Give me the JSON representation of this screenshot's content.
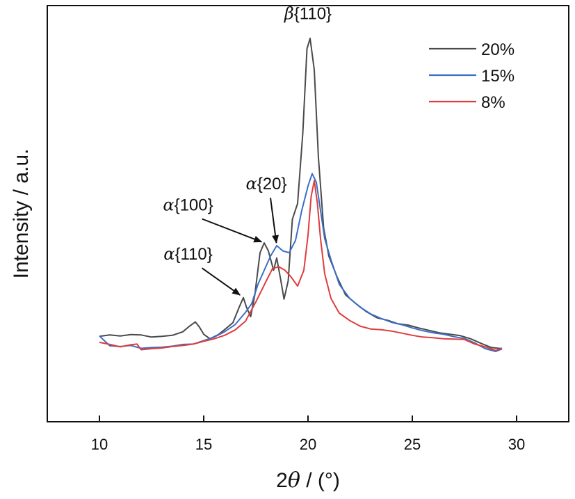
{
  "chart_data": {
    "type": "line",
    "title": "",
    "xlabel": "2θ / (°)",
    "xlabel_parts": {
      "prefix": "2",
      "symbol": "θ",
      "suffix": " / (°)"
    },
    "ylabel": "Intensity / a.u.",
    "xlim": [
      7.5,
      32.5
    ],
    "ylim": [
      0,
      100
    ],
    "y_tick_labels_shown": false,
    "x_ticks": [
      10,
      15,
      20,
      25,
      30
    ],
    "x_tick_labels": [
      "10",
      "15",
      "20",
      "25",
      "30"
    ],
    "grid": false,
    "legend_position": "top-right",
    "series": [
      {
        "name": "20%",
        "color": "#4a4a4a",
        "points": [
          [
            10.0,
            14.2
          ],
          [
            10.5,
            14.6
          ],
          [
            11.0,
            14.3
          ],
          [
            11.5,
            14.7
          ],
          [
            12.0,
            14.6
          ],
          [
            12.5,
            14.0
          ],
          [
            13.0,
            14.2
          ],
          [
            13.5,
            14.5
          ],
          [
            14.0,
            15.5
          ],
          [
            14.3,
            17.0
          ],
          [
            14.6,
            18.3
          ],
          [
            14.8,
            16.8
          ],
          [
            15.0,
            14.8
          ],
          [
            15.3,
            13.5
          ],
          [
            15.7,
            14.7
          ],
          [
            16.0,
            16.1
          ],
          [
            16.4,
            18.1
          ],
          [
            16.7,
            22.5
          ],
          [
            16.9,
            25.2
          ],
          [
            17.05,
            22.5
          ],
          [
            17.25,
            19.8
          ],
          [
            17.45,
            26.0
          ],
          [
            17.7,
            38.0
          ],
          [
            17.9,
            40.8
          ],
          [
            18.1,
            38.5
          ],
          [
            18.35,
            33.0
          ],
          [
            18.5,
            36.5
          ],
          [
            18.7,
            30.0
          ],
          [
            18.85,
            24.8
          ],
          [
            19.05,
            30.0
          ],
          [
            19.25,
            47.5
          ],
          [
            19.5,
            52.0
          ],
          [
            19.75,
            72.0
          ],
          [
            19.95,
            96.0
          ],
          [
            20.1,
            99.0
          ],
          [
            20.3,
            90.0
          ],
          [
            20.5,
            65.0
          ],
          [
            20.75,
            45.0
          ],
          [
            21.0,
            37.0
          ],
          [
            21.4,
            31.0
          ],
          [
            21.8,
            26.0
          ],
          [
            22.3,
            23.5
          ],
          [
            22.8,
            21.2
          ],
          [
            23.3,
            19.5
          ],
          [
            23.8,
            18.8
          ],
          [
            24.3,
            17.8
          ],
          [
            24.8,
            17.4
          ],
          [
            25.3,
            16.6
          ],
          [
            25.8,
            15.9
          ],
          [
            26.3,
            15.2
          ],
          [
            26.8,
            14.8
          ],
          [
            27.3,
            14.4
          ],
          [
            27.8,
            13.5
          ],
          [
            28.3,
            12.2
          ],
          [
            28.8,
            11.0
          ],
          [
            29.3,
            10.7
          ]
        ]
      },
      {
        "name": "15%",
        "color": "#3a6fc7",
        "points": [
          [
            10.0,
            14.3
          ],
          [
            10.5,
            11.5
          ],
          [
            11.0,
            11.3
          ],
          [
            11.5,
            11.6
          ],
          [
            12.0,
            10.8
          ],
          [
            12.5,
            11.0
          ],
          [
            13.0,
            11.1
          ],
          [
            13.5,
            11.4
          ],
          [
            14.0,
            11.9
          ],
          [
            14.5,
            12.0
          ],
          [
            15.0,
            13.0
          ],
          [
            15.5,
            14.0
          ],
          [
            16.0,
            15.5
          ],
          [
            16.5,
            17.5
          ],
          [
            17.0,
            21.0
          ],
          [
            17.3,
            23.5
          ],
          [
            17.6,
            29.0
          ],
          [
            17.9,
            33.0
          ],
          [
            18.2,
            37.0
          ],
          [
            18.5,
            40.0
          ],
          [
            18.8,
            38.5
          ],
          [
            19.1,
            38.0
          ],
          [
            19.4,
            41.5
          ],
          [
            19.7,
            50.0
          ],
          [
            20.0,
            57.0
          ],
          [
            20.2,
            60.5
          ],
          [
            20.4,
            58.0
          ],
          [
            20.6,
            50.0
          ],
          [
            20.8,
            42.0
          ],
          [
            21.1,
            36.0
          ],
          [
            21.5,
            29.0
          ],
          [
            22.0,
            25.0
          ],
          [
            22.5,
            22.5
          ],
          [
            23.0,
            20.6
          ],
          [
            23.5,
            19.3
          ],
          [
            24.0,
            18.2
          ],
          [
            24.5,
            17.5
          ],
          [
            25.0,
            16.6
          ],
          [
            25.5,
            15.8
          ],
          [
            26.0,
            15.2
          ],
          [
            26.5,
            14.8
          ],
          [
            27.0,
            14.1
          ],
          [
            27.5,
            13.6
          ],
          [
            28.0,
            12.3
          ],
          [
            28.5,
            10.7
          ],
          [
            29.0,
            9.9
          ],
          [
            29.3,
            10.6
          ]
        ]
      },
      {
        "name": "8%",
        "color": "#e03c3c",
        "points": [
          [
            10.0,
            12.5
          ],
          [
            10.5,
            11.9
          ],
          [
            11.0,
            11.2
          ],
          [
            11.5,
            11.8
          ],
          [
            11.8,
            12.0
          ],
          [
            12.0,
            10.4
          ],
          [
            12.5,
            10.7
          ],
          [
            13.0,
            10.9
          ],
          [
            13.5,
            11.3
          ],
          [
            14.0,
            11.6
          ],
          [
            14.5,
            12.0
          ],
          [
            15.0,
            12.8
          ],
          [
            15.5,
            13.5
          ],
          [
            16.0,
            14.5
          ],
          [
            16.5,
            16.0
          ],
          [
            17.0,
            18.5
          ],
          [
            17.5,
            24.0
          ],
          [
            18.0,
            30.0
          ],
          [
            18.3,
            33.5
          ],
          [
            18.6,
            34.0
          ],
          [
            18.9,
            33.0
          ],
          [
            19.2,
            31.0
          ],
          [
            19.5,
            28.5
          ],
          [
            19.8,
            33.0
          ],
          [
            20.0,
            43.0
          ],
          [
            20.15,
            54.0
          ],
          [
            20.3,
            58.5
          ],
          [
            20.45,
            52.0
          ],
          [
            20.6,
            42.0
          ],
          [
            20.8,
            32.0
          ],
          [
            21.1,
            25.0
          ],
          [
            21.5,
            20.8
          ],
          [
            22.0,
            18.7
          ],
          [
            22.5,
            17.1
          ],
          [
            23.0,
            16.3
          ],
          [
            23.5,
            16.1
          ],
          [
            24.0,
            15.7
          ],
          [
            24.5,
            15.1
          ],
          [
            25.0,
            14.5
          ],
          [
            25.5,
            14.0
          ],
          [
            26.0,
            13.8
          ],
          [
            26.5,
            13.5
          ],
          [
            27.0,
            13.4
          ],
          [
            27.5,
            13.3
          ],
          [
            28.0,
            12.0
          ],
          [
            28.5,
            11.2
          ],
          [
            29.0,
            10.2
          ],
          [
            29.3,
            10.9
          ]
        ]
      }
    ],
    "annotations": [
      {
        "symbol": "β",
        "text": "{110}",
        "x": 20.1,
        "y": 99.0,
        "label_x": 20.0,
        "label_y": 104.5,
        "arrow": false
      },
      {
        "symbol": "α",
        "text": "{20}",
        "x": 18.5,
        "y": 40.0,
        "label_x": 18.0,
        "label_y": 56.0,
        "arrow": true
      },
      {
        "symbol": "α",
        "text": "{100}",
        "x": 17.9,
        "y": 40.8,
        "label_x": 14.25,
        "label_y": 50.0,
        "arrow": true
      },
      {
        "symbol": "α",
        "text": "{110}",
        "x": 16.85,
        "y": 25.5,
        "label_x": 14.25,
        "label_y": 36.0,
        "arrow": true
      }
    ]
  }
}
